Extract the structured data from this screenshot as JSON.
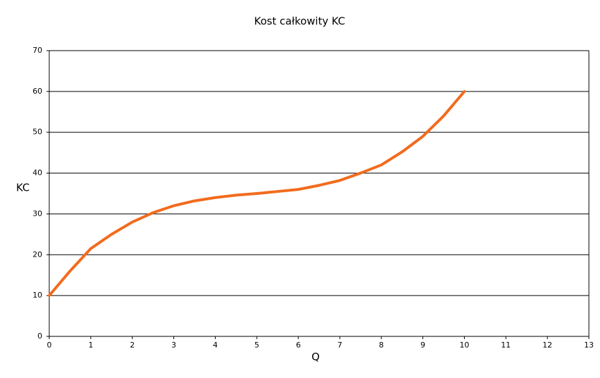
{
  "chart_data": {
    "type": "line",
    "title": "Kost całkowity KC",
    "xlabel": "Q",
    "ylabel": "KC",
    "x": [
      0,
      0.5,
      1,
      1.5,
      2,
      2.5,
      3,
      3.5,
      4,
      4.5,
      5,
      5.5,
      6,
      6.5,
      7,
      7.5,
      8,
      8.5,
      9,
      9.5,
      10
    ],
    "series": [
      {
        "name": "KC",
        "color": "#f26b1d",
        "values": [
          10,
          16,
          21.5,
          25,
          28,
          30.3,
          32,
          33.2,
          34,
          34.6,
          35,
          35.5,
          36,
          37,
          38.2,
          40,
          42,
          45.2,
          49,
          54,
          60
        ]
      }
    ],
    "xlim": [
      0,
      13
    ],
    "xticks": [
      0,
      1,
      2,
      3,
      4,
      5,
      6,
      7,
      8,
      9,
      10,
      11,
      12,
      13
    ],
    "ylim": [
      0,
      70
    ],
    "yticks": [
      0,
      10,
      20,
      30,
      40,
      50,
      60,
      70
    ],
    "grid": true
  }
}
